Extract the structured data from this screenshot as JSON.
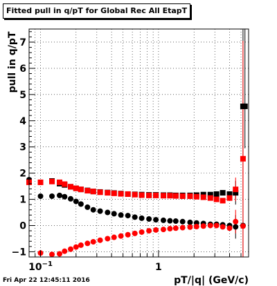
{
  "chart_data": {
    "type": "scatter",
    "title": "Fitted pull in q/pT for Global Rec All EtapT",
    "xlabel": "pT/|q| (GeV/c)",
    "ylabel": "pull in q/pT",
    "xscale": "log",
    "xlim": [
      0.08,
      5.8
    ],
    "ylim": [
      -1.2,
      7.5
    ],
    "x_tick_labels": [
      "10^-1",
      "1"
    ],
    "x_tick_values": [
      0.1,
      1
    ],
    "y_ticks": [
      -1,
      0,
      1,
      2,
      3,
      4,
      5,
      6,
      7
    ],
    "grid": true,
    "footer": "Fri Apr 22 12:45:11 2016",
    "series": [
      {
        "color": "#000000",
        "marker": "circle",
        "x": [
          0.08,
          0.1,
          0.125,
          0.145,
          0.16,
          0.18,
          0.2,
          0.22,
          0.25,
          0.28,
          0.32,
          0.37,
          0.42,
          0.48,
          0.55,
          0.63,
          0.72,
          0.83,
          0.95,
          1.1,
          1.25,
          1.4,
          1.6,
          1.85,
          2.1,
          2.4,
          2.75,
          3.1,
          3.5,
          4.0,
          4.5,
          5.2
        ],
        "y": [
          1.75,
          1.12,
          1.12,
          1.15,
          1.1,
          1.02,
          0.92,
          0.82,
          0.7,
          0.6,
          0.55,
          0.5,
          0.45,
          0.4,
          0.38,
          0.32,
          0.28,
          0.25,
          0.22,
          0.2,
          0.18,
          0.17,
          0.15,
          0.12,
          0.1,
          0.08,
          0.05,
          0.05,
          0.03,
          0.0,
          -0.05,
          0.0
        ]
      },
      {
        "color": "#000000",
        "marker": "square",
        "x": [
          0.125,
          0.145,
          0.16,
          0.18,
          0.2,
          0.22,
          0.25,
          0.28,
          0.32,
          0.37,
          0.42,
          0.48,
          0.55,
          0.63,
          0.72,
          0.83,
          0.95,
          1.1,
          1.25,
          1.4,
          1.6,
          1.85,
          2.1,
          2.4,
          2.75,
          3.1,
          3.5,
          4.0,
          4.5,
          5.2,
          5.4
        ],
        "y": [
          1.7,
          1.6,
          1.55,
          1.48,
          1.42,
          1.38,
          1.34,
          1.3,
          1.28,
          1.26,
          1.24,
          1.22,
          1.2,
          1.19,
          1.18,
          1.17,
          1.17,
          1.16,
          1.16,
          1.15,
          1.15,
          1.15,
          1.16,
          1.18,
          1.18,
          1.2,
          1.25,
          1.2,
          1.25,
          4.55,
          4.55
        ]
      },
      {
        "color": "#ff0000",
        "marker": "square",
        "x": [
          0.08,
          0.1,
          0.125,
          0.145,
          0.16,
          0.18,
          0.2,
          0.22,
          0.25,
          0.28,
          0.32,
          0.37,
          0.42,
          0.48,
          0.55,
          0.63,
          0.72,
          0.83,
          0.95,
          1.1,
          1.25,
          1.4,
          1.6,
          1.85,
          2.1,
          2.4,
          2.75,
          3.1,
          3.5,
          4.0,
          4.5,
          5.2
        ],
        "y": [
          1.65,
          1.65,
          1.68,
          1.65,
          1.58,
          1.48,
          1.42,
          1.38,
          1.33,
          1.3,
          1.27,
          1.25,
          1.23,
          1.21,
          1.2,
          1.18,
          1.16,
          1.15,
          1.15,
          1.14,
          1.14,
          1.13,
          1.12,
          1.12,
          1.1,
          1.08,
          1.05,
          1.0,
          0.95,
          1.05,
          1.38,
          2.55
        ]
      },
      {
        "color": "#ff0000",
        "marker": "circle",
        "x": [
          0.1,
          0.125,
          0.145,
          0.16,
          0.18,
          0.2,
          0.22,
          0.25,
          0.28,
          0.32,
          0.37,
          0.42,
          0.48,
          0.55,
          0.63,
          0.72,
          0.83,
          0.95,
          1.1,
          1.25,
          1.4,
          1.6,
          1.85,
          2.1,
          2.4,
          2.75,
          3.1,
          3.5,
          4.0,
          4.5,
          5.2
        ],
        "y": [
          -1.05,
          -1.1,
          -1.08,
          -0.98,
          -0.9,
          -0.82,
          -0.75,
          -0.68,
          -0.62,
          -0.56,
          -0.5,
          -0.45,
          -0.4,
          -0.35,
          -0.3,
          -0.25,
          -0.2,
          -0.17,
          -0.15,
          -0.12,
          -0.1,
          -0.08,
          -0.06,
          -0.04,
          -0.02,
          0.0,
          0.0,
          -0.05,
          -0.1,
          0.15,
          -0.02
        ]
      }
    ]
  }
}
